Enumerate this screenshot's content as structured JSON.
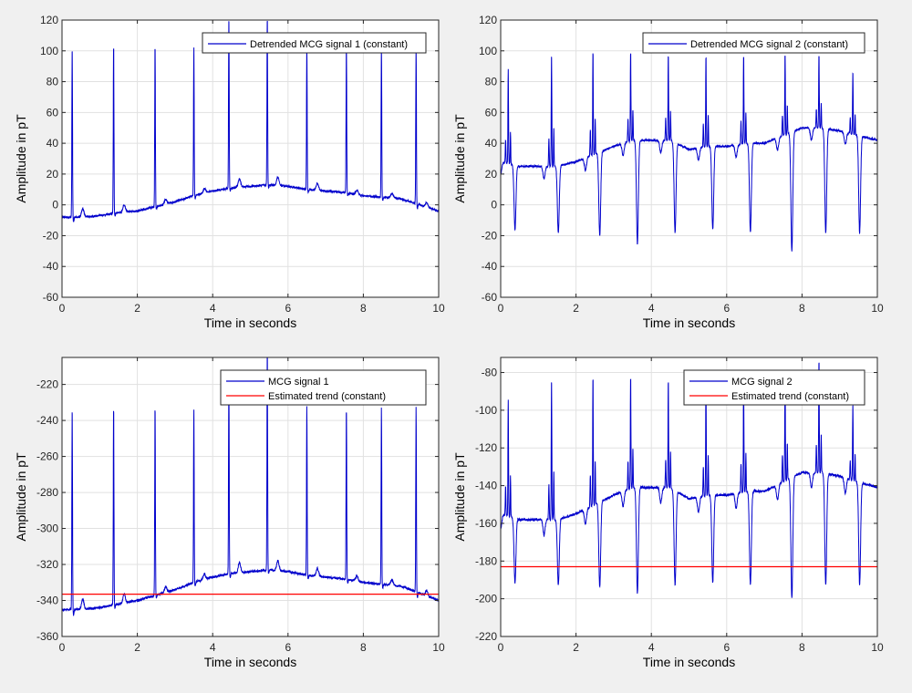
{
  "figure": {
    "background": "#f0f0f0"
  },
  "colors": {
    "signal": "#0000cc",
    "trend": "#ff0000",
    "grid": "#e1e1e1",
    "axes_bg": "#ffffff",
    "axis": "#262626"
  },
  "chart_data": [
    {
      "id": "detrended-1",
      "type": "line",
      "title": "",
      "xlabel": "Time in seconds",
      "ylabel": "Amplitude in pT",
      "xlim": [
        0,
        10
      ],
      "ylim": [
        -60,
        120
      ],
      "xticks": [
        0,
        2,
        4,
        6,
        8,
        10
      ],
      "yticks": [
        -60,
        -40,
        -20,
        0,
        20,
        40,
        60,
        80,
        100,
        120
      ],
      "grid": true,
      "legend": "top-right",
      "beats": [
        0.27,
        1.37,
        2.47,
        3.5,
        4.43,
        5.45,
        6.5,
        7.55,
        8.48,
        9.4
      ],
      "r_peaks": [
        103,
        104,
        104,
        102,
        122,
        122,
        104,
        103,
        103,
        103
      ],
      "s_depth": [
        3,
        2,
        2,
        2,
        2,
        2,
        2,
        2,
        2,
        3
      ],
      "t_waves": [
        5.5,
        5,
        3,
        3,
        5.5,
        5.5,
        4.5,
        3,
        3,
        3
      ],
      "series": [
        {
          "name": "Detrended MCG signal 1 (constant)",
          "color": "#0000cc",
          "baseline": {
            "x": [
              0,
              0.5,
              1,
              1.5,
              2,
              2.5,
              3,
              3.5,
              4,
              4.5,
              5,
              5.5,
              6,
              6.5,
              7,
              7.5,
              8,
              8.5,
              9,
              9.5,
              10
            ],
            "y": [
              -8,
              -8,
              -7,
              -5,
              -4,
              -1,
              2,
              6,
              9,
              11,
              12,
              13,
              12,
              10,
              9,
              8,
              6,
              5,
              4,
              0,
              -4
            ]
          }
        }
      ]
    },
    {
      "id": "detrended-2",
      "type": "line",
      "title": "",
      "xlabel": "Time in seconds",
      "ylabel": "Amplitude in pT",
      "xlim": [
        0,
        10
      ],
      "ylim": [
        -60,
        120
      ],
      "xticks": [
        0,
        2,
        4,
        6,
        8,
        10
      ],
      "yticks": [
        -60,
        -40,
        -20,
        0,
        20,
        40,
        60,
        80,
        100,
        120
      ],
      "grid": true,
      "legend": "top-right",
      "beats": [
        0.2,
        1.35,
        2.45,
        3.45,
        4.45,
        5.45,
        6.45,
        7.55,
        8.45,
        9.35
      ],
      "r_peaks": [
        88,
        98,
        100,
        100,
        98,
        97,
        98,
        98,
        98,
        86
      ],
      "s_depth": [
        16,
        18,
        20,
        25,
        18,
        16,
        18,
        30,
        18,
        18
      ],
      "t_waves": [
        0,
        0,
        0,
        0,
        0,
        0,
        0,
        0,
        0,
        0
      ],
      "series": [
        {
          "name": "Detrended MCG signal 2 (constant)",
          "color": "#0000cc",
          "baseline": {
            "x": [
              0,
              0.5,
              1,
              1.5,
              2,
              2.5,
              3,
              3.5,
              4,
              4.5,
              5,
              5.5,
              6,
              6.5,
              7,
              7.5,
              8,
              8.5,
              9,
              9.5,
              10
            ],
            "y": [
              28,
              25,
              25,
              25,
              28,
              33,
              38,
              42,
              42,
              42,
              36,
              38,
              38,
              40,
              40,
              45,
              50,
              50,
              48,
              45,
              42
            ]
          }
        }
      ]
    },
    {
      "id": "raw-1",
      "type": "line",
      "title": "",
      "xlabel": "Time in seconds",
      "ylabel": "Amplitude in pT",
      "xlim": [
        0,
        10
      ],
      "ylim": [
        -360,
        -205
      ],
      "xticks": [
        0,
        2,
        4,
        6,
        8,
        10
      ],
      "yticks": [
        -360,
        -340,
        -320,
        -300,
        -280,
        -260,
        -240,
        -220
      ],
      "grid": true,
      "legend": "top-right",
      "beats": [
        0.27,
        1.37,
        2.47,
        3.5,
        4.43,
        5.45,
        6.5,
        7.55,
        8.48,
        9.4
      ],
      "r_peaks": [
        -233,
        -232,
        -232,
        -234,
        -214,
        -200,
        -232,
        -233,
        -233,
        -233
      ],
      "s_depth": [
        3,
        2,
        2,
        2,
        2,
        2,
        2,
        2,
        2,
        3
      ],
      "t_waves": [
        5.5,
        5,
        3,
        3,
        5.5,
        5.5,
        4.5,
        3,
        3,
        3
      ],
      "trend": {
        "name": "Estimated trend (constant)",
        "value": -336.5,
        "color": "#ff0000"
      },
      "series": [
        {
          "name": "MCG signal 1",
          "color": "#0000cc",
          "baseline": {
            "x": [
              0,
              0.5,
              1,
              1.5,
              2,
              2.5,
              3,
              3.5,
              4,
              4.5,
              5,
              5.5,
              6,
              6.5,
              7,
              7.5,
              8,
              8.5,
              9,
              9.5,
              10
            ],
            "y": [
              -345,
              -345,
              -344,
              -342,
              -340,
              -337,
              -334,
              -330,
              -327,
              -325,
              -324,
              -323,
              -324,
              -326,
              -327,
              -328,
              -330,
              -331,
              -332,
              -336,
              -340
            ]
          }
        }
      ]
    },
    {
      "id": "raw-2",
      "type": "line",
      "title": "",
      "xlabel": "Time in seconds",
      "ylabel": "Amplitude in pT",
      "xlim": [
        0,
        10
      ],
      "ylim": [
        -220,
        -72
      ],
      "xticks": [
        0,
        2,
        4,
        6,
        8,
        10
      ],
      "yticks": [
        -220,
        -200,
        -180,
        -160,
        -140,
        -120,
        -100,
        -80
      ],
      "grid": true,
      "legend": "top-right",
      "beats": [
        0.2,
        1.35,
        2.45,
        3.45,
        4.45,
        5.45,
        6.45,
        7.55,
        8.45,
        9.35
      ],
      "r_peaks": [
        -94,
        -83,
        -82,
        -82,
        -84,
        -84,
        -84,
        -80,
        -73,
        -96
      ],
      "s_depth": [
        16,
        18,
        20,
        25,
        18,
        16,
        18,
        30,
        18,
        18
      ],
      "t_waves": [
        0,
        0,
        0,
        0,
        0,
        0,
        0,
        0,
        0,
        0
      ],
      "trend": {
        "name": "Estimated trend (constant)",
        "value": -183,
        "color": "#ff0000"
      },
      "series": [
        {
          "name": "MCG signal 2",
          "color": "#0000cc",
          "baseline": {
            "x": [
              0,
              0.5,
              1,
              1.5,
              2,
              2.5,
              3,
              3.5,
              4,
              4.5,
              5,
              5.5,
              6,
              6.5,
              7,
              7.5,
              8,
              8.5,
              9,
              9.5,
              10
            ],
            "y": [
              -155,
              -158,
              -158,
              -158,
              -155,
              -150,
              -145,
              -141,
              -141,
              -141,
              -147,
              -145,
              -145,
              -143,
              -143,
              -138,
              -133,
              -133,
              -135,
              -138,
              -141
            ]
          }
        }
      ]
    }
  ]
}
